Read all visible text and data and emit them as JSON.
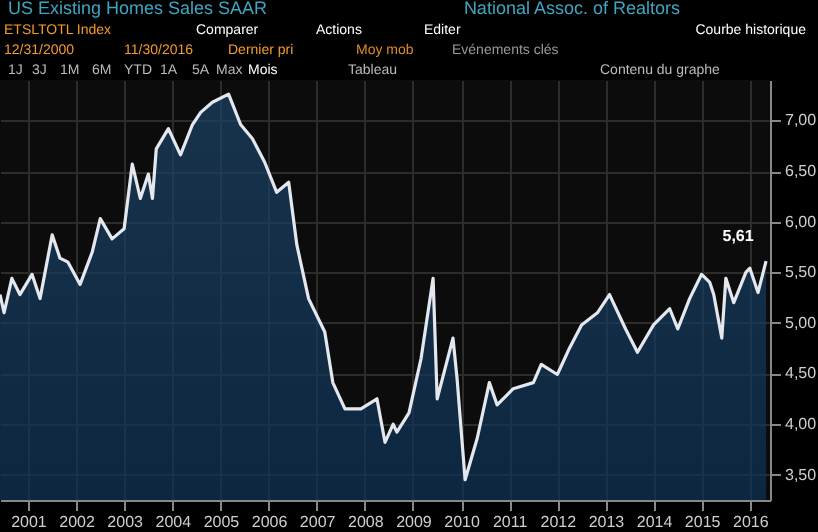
{
  "chart_data": {
    "type": "area",
    "title": "US Existing Homes Sales SAAR",
    "subtitle": "National Assoc. of Realtors",
    "annotations": [
      "ETSLTOTL Index",
      "Comparer",
      "Actions",
      "Editer",
      "Courbe historique",
      "12/31/2000",
      "11/30/2016",
      "Dernier pri",
      "Moy mob",
      "Evénements clés",
      "1J",
      "3J",
      "1M",
      "6M",
      "YTD",
      "1A",
      "5A",
      "Max",
      "Mois",
      "Tableau",
      "Contenu du graphe",
      {
        "text": "5,61",
        "x": "2016-11",
        "y": 5.61
      }
    ],
    "x": [
      "2000-12",
      "2001-01",
      "2001-03",
      "2001-05",
      "2001-08",
      "2001-10",
      "2002-01",
      "2002-03",
      "2002-05",
      "2002-08",
      "2002-11",
      "2003-01",
      "2003-04",
      "2003-07",
      "2003-09",
      "2003-11",
      "2004-01",
      "2004-02",
      "2004-03",
      "2004-06",
      "2004-09",
      "2004-12",
      "2005-02",
      "2005-05",
      "2005-09",
      "2005-12",
      "2006-03",
      "2006-06",
      "2006-09",
      "2006-12",
      "2007-02",
      "2007-05",
      "2007-09",
      "2007-11",
      "2008-02",
      "2008-06",
      "2008-10",
      "2008-12",
      "2009-02",
      "2009-03",
      "2009-06",
      "2009-09",
      "2009-12",
      "2010-01",
      "2010-05",
      "2010-06",
      "2010-08",
      "2010-11",
      "2011-02",
      "2011-04",
      "2011-08",
      "2012-01",
      "2012-03",
      "2012-07",
      "2012-10",
      "2013-01",
      "2013-05",
      "2013-08",
      "2013-12",
      "2014-03",
      "2014-07",
      "2014-11",
      "2015-01",
      "2015-04",
      "2015-07",
      "2015-09",
      "2015-10",
      "2015-12",
      "2016-01",
      "2016-03",
      "2016-06",
      "2016-07",
      "2016-09",
      "2016-11"
    ],
    "series": [
      {
        "color": "#e4e8ee",
        "values": [
          5.28,
          5.1,
          5.44,
          5.28,
          5.48,
          5.24,
          5.87,
          5.64,
          5.6,
          5.38,
          5.7,
          6.03,
          5.83,
          5.93,
          6.57,
          6.23,
          6.47,
          6.23,
          6.72,
          6.92,
          6.66,
          6.96,
          7.08,
          7.18,
          7.26,
          6.96,
          6.82,
          6.59,
          6.29,
          6.39,
          5.77,
          5.24,
          4.91,
          4.41,
          4.15,
          4.15,
          4.25,
          3.82,
          4.0,
          3.92,
          4.11,
          4.65,
          5.44,
          4.25,
          4.85,
          4.45,
          3.45,
          3.86,
          4.41,
          4.19,
          4.35,
          4.41,
          4.59,
          4.49,
          4.75,
          4.98,
          5.1,
          5.28,
          4.94,
          4.71,
          4.98,
          5.14,
          4.94,
          5.24,
          5.48,
          5.4,
          5.28,
          4.85,
          5.44,
          5.2,
          5.5,
          5.54,
          5.3,
          5.61
        ]
      }
    ],
    "xlim": [
      "2000-12",
      "2016-12"
    ],
    "xticks": [
      {
        "value": "2001-07",
        "label": "2001"
      },
      {
        "value": "2002-07",
        "label": "2002"
      },
      {
        "value": "2003-07",
        "label": "2003"
      },
      {
        "value": "2004-07",
        "label": "2004"
      },
      {
        "value": "2005-07",
        "label": "2005"
      },
      {
        "value": "2006-07",
        "label": "2006"
      },
      {
        "value": "2007-07",
        "label": "2007"
      },
      {
        "value": "2008-07",
        "label": "2008"
      },
      {
        "value": "2009-07",
        "label": "2009"
      },
      {
        "value": "2010-07",
        "label": "2010"
      },
      {
        "value": "2011-07",
        "label": "2011"
      },
      {
        "value": "2012-07",
        "label": "2012"
      },
      {
        "value": "2013-07",
        "label": "2013"
      },
      {
        "value": "2014-07",
        "label": "2014"
      },
      {
        "value": "2015-07",
        "label": "2015"
      },
      {
        "value": "2016-07",
        "label": "2016"
      }
    ],
    "ylim": [
      3.25,
      7.4
    ],
    "yticks": [
      {
        "value": 3.5,
        "label": "3,50"
      },
      {
        "value": 4,
        "label": "4,00"
      },
      {
        "value": 4.5,
        "label": "4,50"
      },
      {
        "value": 5,
        "label": "5,00"
      },
      {
        "value": 5.5,
        "label": "5,50"
      },
      {
        "value": 6,
        "label": "6,00"
      },
      {
        "value": 6.5,
        "label": "6,50"
      },
      {
        "value": 7,
        "label": "7,00"
      }
    ],
    "grid": true
  }
}
